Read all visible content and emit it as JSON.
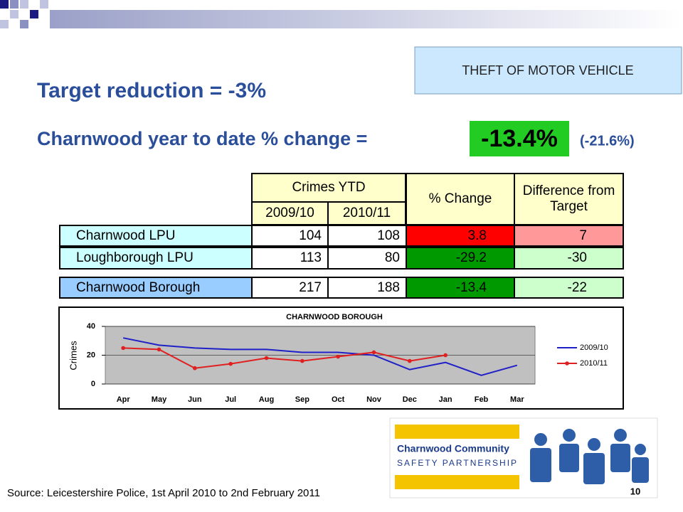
{
  "box_label": "THEFT OF MOTOR VEHICLE",
  "target": "Target reduction = -3%",
  "ytd_label": "Charnwood year to date % change =",
  "ytd_value": "-13.4%",
  "ytd_prev": "(-21.6%)",
  "table": {
    "group_header": "Crimes YTD",
    "headers": [
      "2009/10",
      "2010/11",
      "% Change",
      "Difference from Target"
    ],
    "rows": [
      [
        "Charnwood LPU",
        "104",
        "108",
        "3.8",
        "7"
      ],
      [
        "Loughborough LPU",
        "113",
        "80",
        "-29.2",
        "-30"
      ],
      [
        "Charnwood Borough",
        "217",
        "188",
        "-13.4",
        "-22"
      ]
    ]
  },
  "chart_data": {
    "type": "line",
    "title": "CHARNWOOD BOROUGH",
    "y_label": "Crimes",
    "categories": [
      "Apr",
      "May",
      "Jun",
      "Jul",
      "Aug",
      "Sep",
      "Oct",
      "Nov",
      "Dec",
      "Jan",
      "Feb",
      "Mar"
    ],
    "series": [
      {
        "name": "2009/10",
        "color": "#2020c8",
        "values": [
          32,
          27,
          25,
          24,
          24,
          22,
          22,
          20,
          10,
          15,
          6,
          13
        ]
      },
      {
        "name": "2010/11",
        "color": "#e02020",
        "values": [
          25,
          24,
          11,
          14,
          18,
          16,
          19,
          22,
          16,
          20,
          null,
          null
        ]
      }
    ],
    "ylim": [
      0,
      40
    ],
    "yticks": [
      0,
      20,
      40
    ],
    "grid": true,
    "legend": "right"
  },
  "logo": {
    "line1": "Charnwood Community",
    "line2": "SAFETY PARTNERSHIP"
  },
  "source": "Source: Leicestershire Police, 1st April 2010 to 2nd February 2011",
  "page_number": "10"
}
